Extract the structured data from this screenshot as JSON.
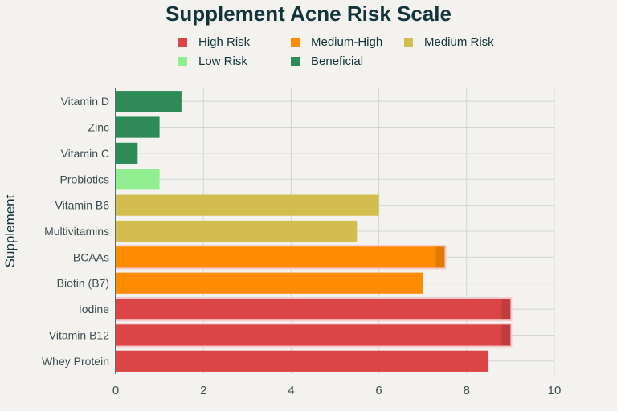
{
  "chart_data": {
    "type": "bar",
    "orientation": "horizontal",
    "title": "Supplement Acne Risk Scale",
    "xlabel": "",
    "ylabel": "Supplement",
    "xlim": [
      0,
      10
    ],
    "xticks": [
      0,
      2,
      4,
      6,
      8,
      10
    ],
    "grid": true,
    "legend_position": "top-center",
    "legend": [
      {
        "label": "High Risk",
        "color": "#dc4545"
      },
      {
        "label": "Medium-High",
        "color": "#ff8c00"
      },
      {
        "label": "Medium Risk",
        "color": "#d3bd4e"
      },
      {
        "label": "Low Risk",
        "color": "#90ee90"
      },
      {
        "label": "Beneficial",
        "color": "#2e8b57"
      }
    ],
    "categories": [
      "Vitamin D",
      "Zinc",
      "Vitamin C",
      "Probiotics",
      "Vitamin B6",
      "Multivitamins",
      "BCAAs",
      "Biotin (B7)",
      "Iodine",
      "Vitamin B12",
      "Whey Protein"
    ],
    "values": [
      1.5,
      1,
      0.5,
      1,
      6,
      5.5,
      7.5,
      7,
      9,
      9,
      8.5
    ],
    "risk_levels": [
      "Beneficial",
      "Beneficial",
      "Beneficial",
      "Low Risk",
      "Medium Risk",
      "Medium Risk",
      "Medium-High",
      "Medium-High",
      "High Risk",
      "High Risk",
      "High Risk"
    ],
    "highlighted": [
      false,
      false,
      false,
      false,
      false,
      false,
      true,
      false,
      true,
      true,
      false
    ]
  }
}
